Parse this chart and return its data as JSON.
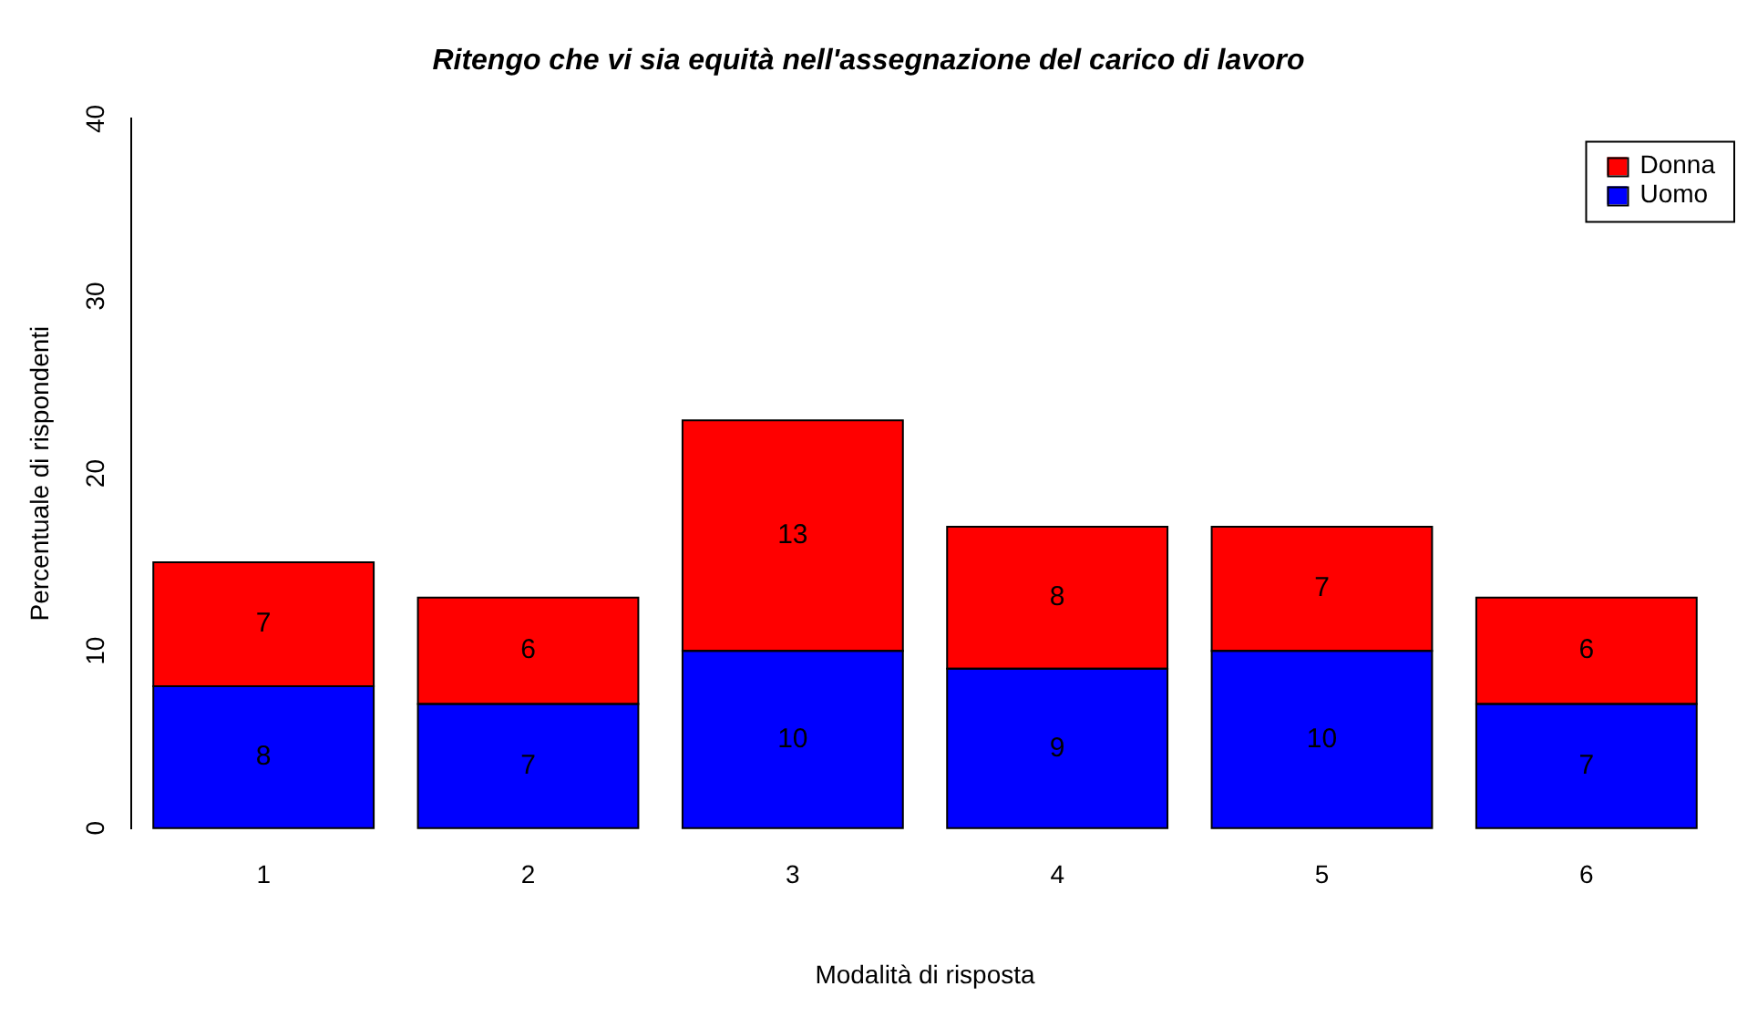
{
  "chart_data": {
    "type": "bar",
    "title": "Ritengo che vi sia equità nell'assegnazione del carico di lavoro",
    "xlabel": "Modalità di risposta",
    "ylabel": "Percentuale di rispondenti",
    "categories": [
      "1",
      "2",
      "3",
      "4",
      "5",
      "6"
    ],
    "series": [
      {
        "name": "Uomo",
        "color": "#0000ff",
        "values": [
          8,
          7,
          10,
          9,
          10,
          7
        ]
      },
      {
        "name": "Donna",
        "color": "#ff0000",
        "values": [
          7,
          6,
          13,
          8,
          7,
          6
        ]
      }
    ],
    "stacked": true,
    "ylim": [
      0,
      40
    ],
    "yticks": [
      0,
      10,
      20,
      30,
      40
    ],
    "grid": false,
    "legend": "top right",
    "data_labels": true
  }
}
